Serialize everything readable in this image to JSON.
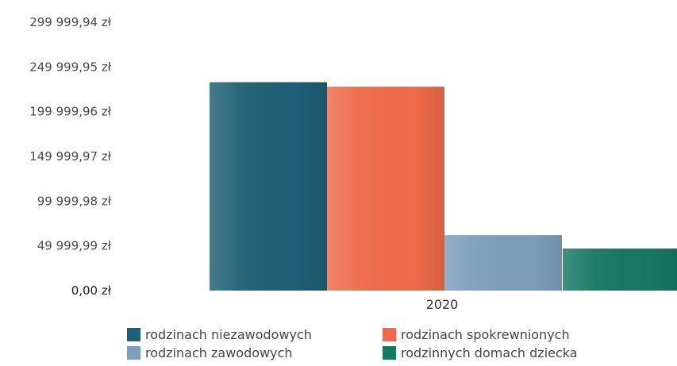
{
  "chart_data": {
    "type": "bar",
    "categories": [
      "2020"
    ],
    "ylim": [
      0,
      299999.94
    ],
    "yticks": [
      {
        "value": 0,
        "label": "0,00 zł"
      },
      {
        "value": 49999.99,
        "label": "49 999,99 zł"
      },
      {
        "value": 99999.98,
        "label": "99 999,98 zł"
      },
      {
        "value": 149999.97,
        "label": "149 999,97 zł"
      },
      {
        "value": 199999.96,
        "label": "199 999,96 zł"
      },
      {
        "value": 249999.95,
        "label": "249 999,95 zł"
      },
      {
        "value": 299999.94,
        "label": "299 999,94 zł"
      }
    ],
    "series": [
      {
        "name": "rodzinach niezawodowych",
        "values": [
          233000
        ],
        "color": "#1f5f75"
      },
      {
        "name": "rodzinach spokrewnionych",
        "values": [
          228000
        ],
        "color": "#ee6a4a"
      },
      {
        "name": "rodzinach zawodowych",
        "values": [
          62000
        ],
        "color": "#7d9dbb"
      },
      {
        "name": "rodzinnych domach dziecka",
        "values": [
          47000
        ],
        "color": "#167763"
      }
    ],
    "grid": false,
    "legend_position": "bottom"
  }
}
